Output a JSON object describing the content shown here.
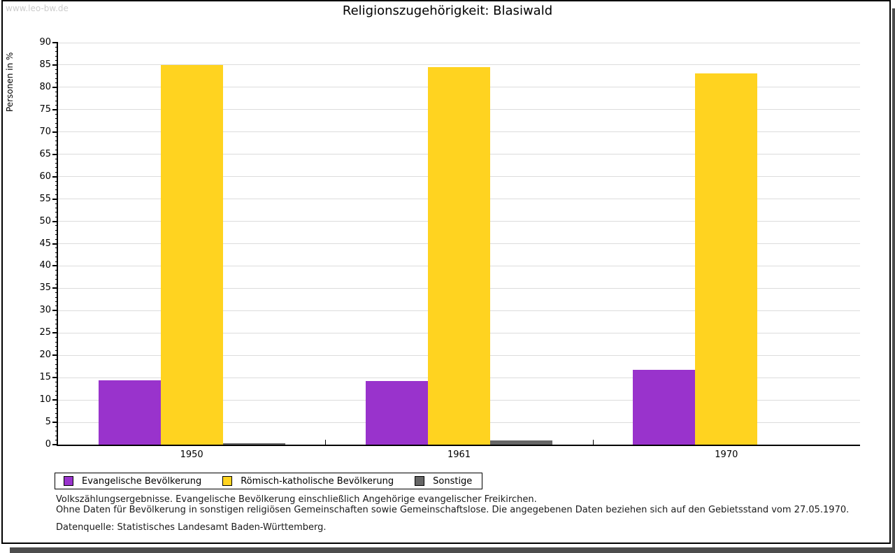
{
  "watermark": "www.leo-bw.de",
  "title": "Religionszugehörigkeit: Blasiwald",
  "chart_data": {
    "type": "bar",
    "title": "Religionszugehörigkeit: Blasiwald",
    "xlabel": "",
    "ylabel": "Personen in %",
    "ylim": [
      0,
      90
    ],
    "ytick_step": 5,
    "grid": true,
    "legend_position": "bottom-left",
    "categories": [
      "1950",
      "1961",
      "1970"
    ],
    "series": [
      {
        "name": "Evangelische Bevölkerung",
        "color": "#9933cc",
        "values": [
          14.4,
          14.2,
          16.8
        ]
      },
      {
        "name": "Römisch-katholische Bevölkerung",
        "color": "#ffd320",
        "values": [
          85.0,
          84.6,
          83.1
        ]
      },
      {
        "name": "Sonstige",
        "color": "#666666",
        "values": [
          0.3,
          1.0,
          0.0
        ]
      }
    ]
  },
  "footnotes": {
    "line1": "Volkszählungsergebnisse. Evangelische Bevölkerung einschließlich Angehörige evangelischer Freikirchen.",
    "line2": "Ohne Daten für Bevölkerung in sonstigen religiösen Gemeinschaften sowie Gemeinschaftslose. Die angegebenen Daten beziehen sich auf den Gebietsstand vom 27.05.1970.",
    "source": "Datenquelle: Statistisches Landesamt Baden-Württemberg."
  }
}
